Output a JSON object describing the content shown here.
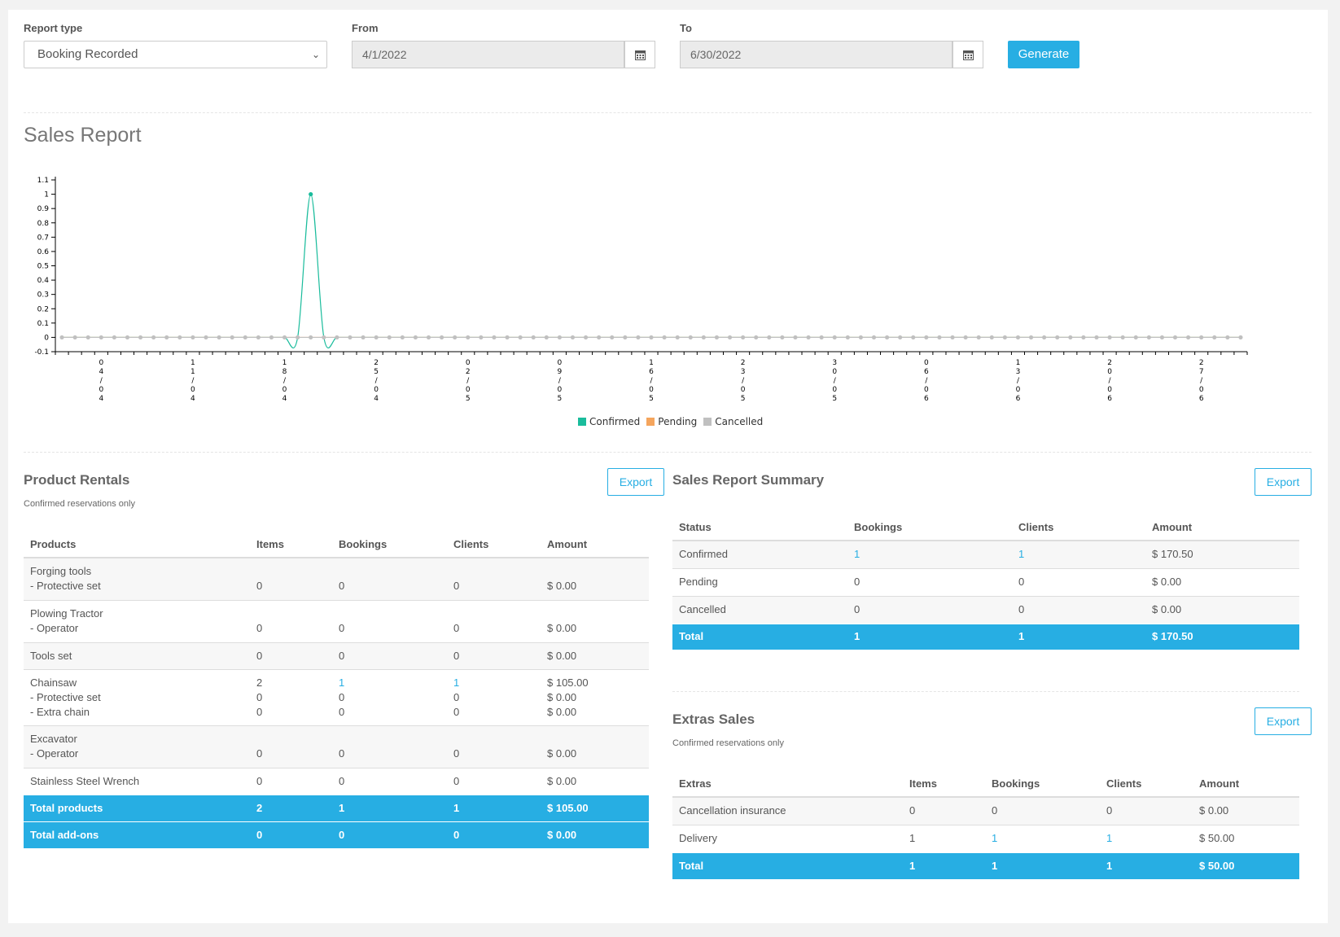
{
  "filters": {
    "report_type_label": "Report type",
    "report_type_value": "Booking Recorded",
    "from_label": "From",
    "from_value": "4/1/2022",
    "to_label": "To",
    "to_value": "6/30/2022",
    "generate_label": "Generate"
  },
  "chart_title": "Sales Report",
  "chart_data": {
    "type": "line",
    "yticks": [
      "-0.1",
      "0",
      "0.1",
      "0.2",
      "0.3",
      "0.4",
      "0.5",
      "0.6",
      "0.7",
      "0.8",
      "0.9",
      "1",
      "1.1"
    ],
    "ylim": [
      -0.1,
      1.1
    ],
    "x_start": "2022-04-01",
    "x_end": "2022-06-30",
    "xtick_labels": [
      "04/04",
      "11/04",
      "18/04",
      "25/04",
      "02/05",
      "09/05",
      "16/05",
      "23/05",
      "30/05",
      "06/06",
      "13/06",
      "20/06",
      "27/06"
    ],
    "series": [
      {
        "name": "Confirmed",
        "color": "#1abc9c",
        "points": [
          {
            "date": "2022-04-20",
            "value": 1
          }
        ],
        "default": 0
      },
      {
        "name": "Pending",
        "color": "#f5a55d",
        "points": [],
        "default": 0
      },
      {
        "name": "Cancelled",
        "color": "#c0c0c0",
        "points": [],
        "default": 0
      }
    ]
  },
  "product_rentals": {
    "title": "Product Rentals",
    "note": "Confirmed reservations only",
    "export_label": "Export",
    "headers": [
      "Products",
      "Items",
      "Bookings",
      "Clients",
      "Amount"
    ],
    "rows": [
      {
        "lines": [
          [
            "Forging tools",
            "",
            "",
            "",
            ""
          ],
          [
            "- Protective set",
            "0",
            "0",
            "0",
            "$ 0.00"
          ]
        ]
      },
      {
        "lines": [
          [
            "Plowing Tractor",
            "",
            "",
            "",
            ""
          ],
          [
            "- Operator",
            "0",
            "0",
            "0",
            "$ 0.00"
          ]
        ]
      },
      {
        "lines": [
          [
            "Tools set",
            "0",
            "0",
            "0",
            "$ 0.00"
          ]
        ]
      },
      {
        "lines": [
          [
            "Chainsaw",
            "2",
            "1",
            "1",
            "$ 105.00"
          ],
          [
            "- Protective set",
            "0",
            "0",
            "0",
            "$ 0.00"
          ],
          [
            "- Extra chain",
            "0",
            "0",
            "0",
            "$ 0.00"
          ]
        ]
      },
      {
        "lines": [
          [
            "Excavator",
            "",
            "",
            "",
            ""
          ],
          [
            "- Operator",
            "0",
            "0",
            "0",
            "$ 0.00"
          ]
        ]
      },
      {
        "lines": [
          [
            "Stainless Steel Wrench",
            "0",
            "0",
            "0",
            "$ 0.00"
          ]
        ]
      }
    ],
    "totals": [
      [
        "Total products",
        "2",
        "1",
        "1",
        "$ 105.00"
      ],
      [
        "Total add-ons",
        "0",
        "0",
        "0",
        "$ 0.00"
      ]
    ]
  },
  "summary": {
    "title": "Sales Report Summary",
    "export_label": "Export",
    "headers": [
      "Status",
      "Bookings",
      "Clients",
      "Amount"
    ],
    "rows": [
      [
        "Confirmed",
        "1",
        "1",
        "$ 170.50"
      ],
      [
        "Pending",
        "0",
        "0",
        "$ 0.00"
      ],
      [
        "Cancelled",
        "0",
        "0",
        "$ 0.00"
      ]
    ],
    "total": [
      "Total",
      "1",
      "1",
      "$ 170.50"
    ]
  },
  "extras": {
    "title": "Extras Sales",
    "note": "Confirmed reservations only",
    "export_label": "Export",
    "headers": [
      "Extras",
      "Items",
      "Bookings",
      "Clients",
      "Amount"
    ],
    "rows": [
      [
        "Cancellation insurance",
        "0",
        "0",
        "0",
        "$ 0.00"
      ],
      [
        "Delivery",
        "1",
        "1",
        "1",
        "$ 50.00"
      ]
    ],
    "total": [
      "Total",
      "1",
      "1",
      "1",
      "$ 50.00"
    ]
  }
}
